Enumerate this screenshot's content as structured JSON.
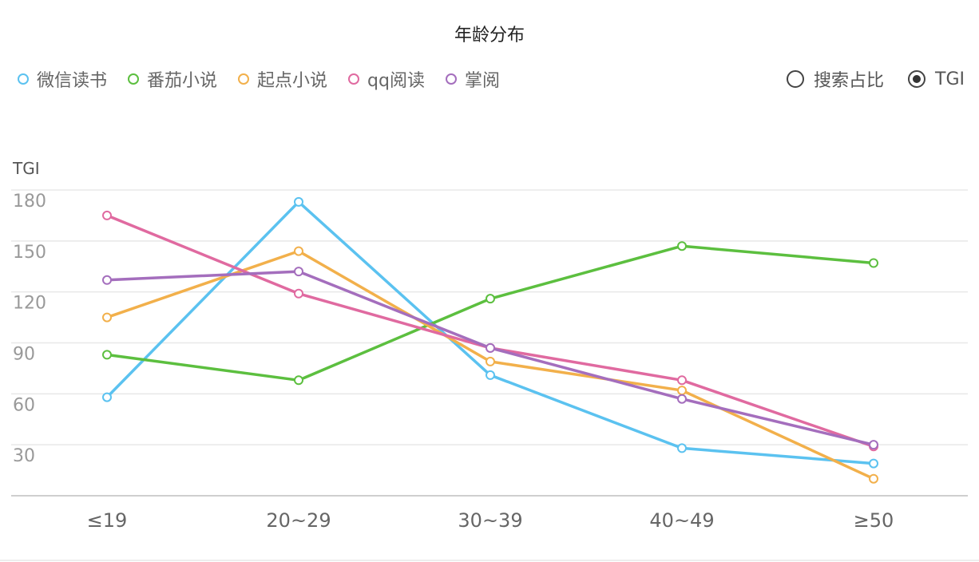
{
  "chart_data": {
    "type": "line",
    "title": "年龄分布",
    "ylabel": "TGI",
    "xlabel": "",
    "categories": [
      "≤19",
      "20~29",
      "30~39",
      "40~49",
      "≥50"
    ],
    "yticks": [
      30,
      60,
      90,
      120,
      150,
      180
    ],
    "ylim": [
      0,
      180
    ],
    "grid": "horizontal",
    "legend_position": "top-left",
    "series": [
      {
        "name": "微信读书",
        "color": "#5bc2f0",
        "values": [
          58,
          173,
          71,
          28,
          19
        ]
      },
      {
        "name": "番茄小说",
        "color": "#5cbf3f",
        "values": [
          83,
          68,
          116,
          147,
          137
        ]
      },
      {
        "name": "起点小说",
        "color": "#f2b04b",
        "values": [
          105,
          144,
          79,
          62,
          10
        ]
      },
      {
        "name": "qq阅读",
        "color": "#e06aa0",
        "values": [
          165,
          119,
          87,
          68,
          29
        ]
      },
      {
        "name": "掌阅",
        "color": "#a46ebd",
        "values": [
          127,
          132,
          87,
          57,
          30
        ]
      }
    ]
  },
  "controls": {
    "options": [
      {
        "label": "搜索占比",
        "checked": false
      },
      {
        "label": "TGI",
        "checked": true
      }
    ]
  }
}
